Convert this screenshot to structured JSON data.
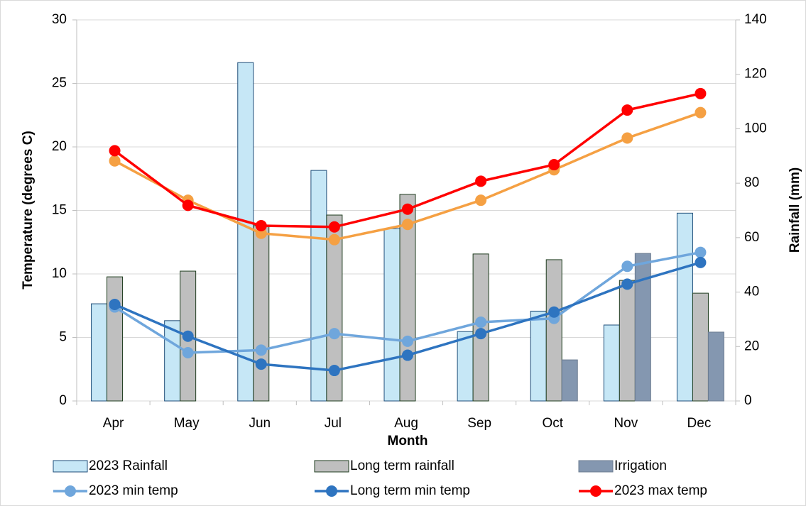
{
  "chart_data": {
    "type": "combo",
    "x_label": "Month",
    "y_label": "Temperature (degrees C)",
    "y2_label": "Rainfall (mm)",
    "categories": [
      "Apr",
      "May",
      "Jun",
      "Jul",
      "Aug",
      "Sep",
      "Oct",
      "Nov",
      "Dec"
    ],
    "ylim": [
      0,
      30
    ],
    "yticks": [
      0,
      5,
      10,
      15,
      20,
      25,
      30
    ],
    "y2lim": [
      0,
      140
    ],
    "y2ticks": [
      0,
      20,
      40,
      60,
      80,
      100,
      120,
      140
    ],
    "grid": true,
    "legend": "bottom",
    "series": [
      {
        "name": "2023 Rainfall",
        "type": "bar",
        "axis": "y2",
        "color": "#c6e7f6",
        "values": [
          35.7,
          29.5,
          124.3,
          84.7,
          63.3,
          25.5,
          33,
          27.9,
          69
        ]
      },
      {
        "name": "Long term rainfall",
        "type": "bar",
        "axis": "y2",
        "color": "#bfbfbf",
        "values": [
          45.6,
          47.7,
          64.4,
          68.3,
          75.9,
          54,
          51.9,
          44.3,
          39.6
        ]
      },
      {
        "name": "Irrigation",
        "type": "bar",
        "axis": "y2",
        "color": "#8497b0",
        "values": [
          null,
          null,
          null,
          null,
          null,
          null,
          15.1,
          54.2,
          25.3
        ]
      },
      {
        "type": "line",
        "color": "#f5a043",
        "values": [
          18.9,
          15.8,
          13.2,
          12.7,
          13.9,
          15.8,
          18.2,
          20.7,
          22.7
        ]
      },
      {
        "name": "2023 min temp",
        "type": "line",
        "color": "#6fa6dc",
        "values": [
          7.4,
          3.8,
          4.0,
          5.3,
          4.7,
          6.2,
          6.5,
          10.6,
          11.7
        ]
      },
      {
        "name": "Long term min temp",
        "type": "line",
        "color": "#2e74c0",
        "values": [
          7.6,
          5.1,
          2.9,
          2.4,
          3.6,
          5.3,
          7.0,
          9.2,
          10.9
        ]
      },
      {
        "name": "2023 max temp",
        "type": "line",
        "color": "#ff0000",
        "values": [
          19.7,
          15.4,
          13.8,
          13.7,
          15.1,
          17.3,
          18.6,
          22.9,
          24.2
        ]
      }
    ]
  }
}
